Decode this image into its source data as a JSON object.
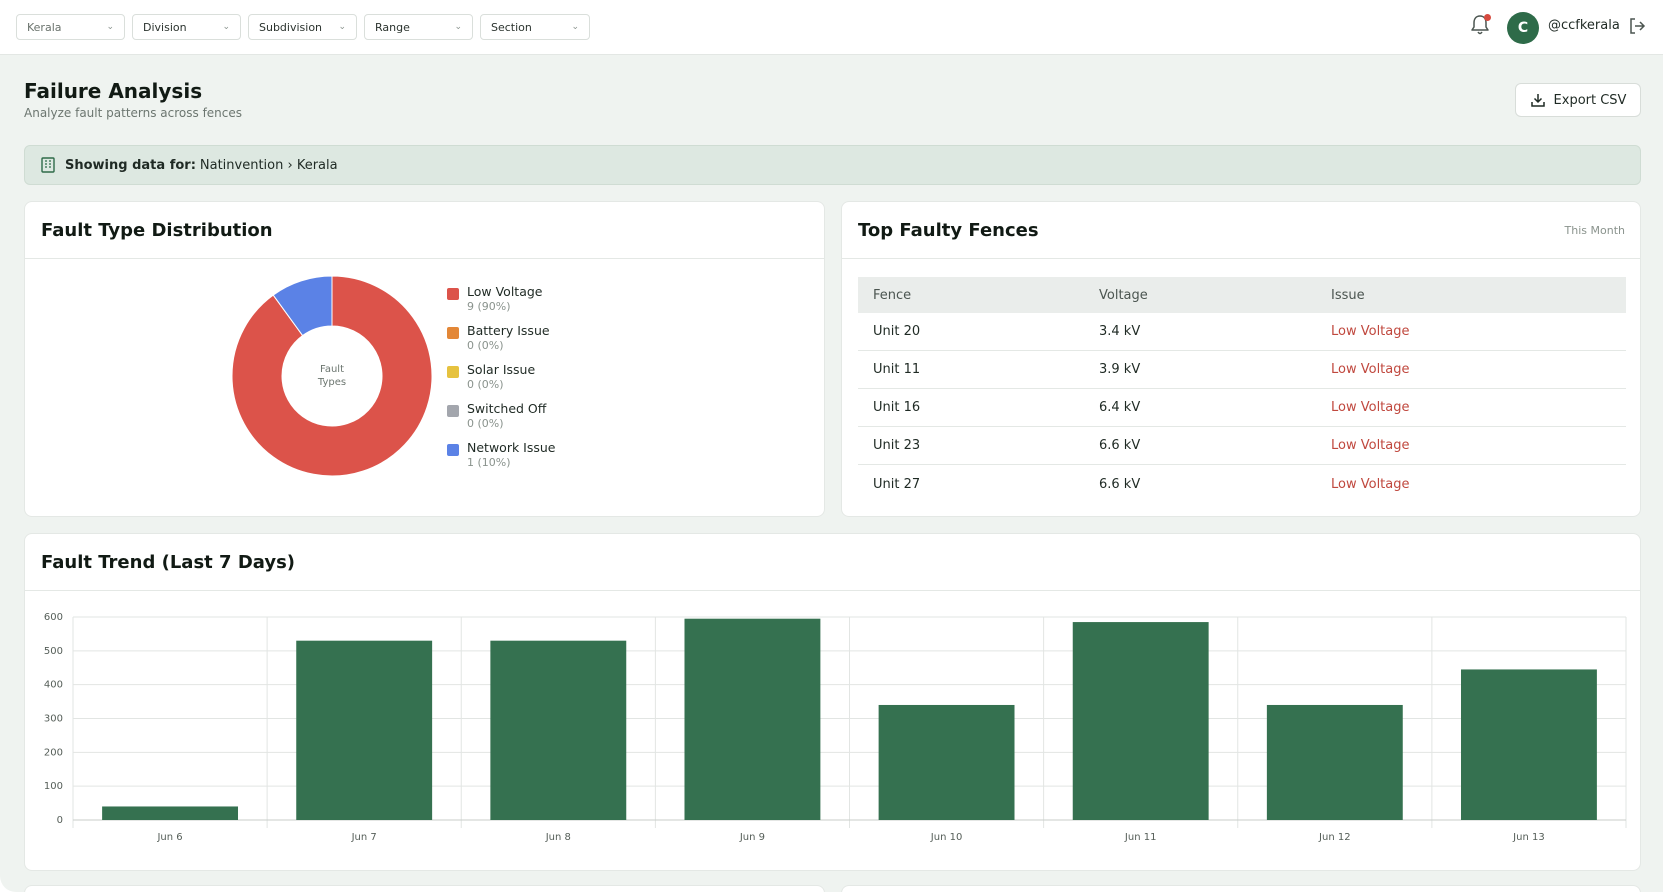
{
  "filters": [
    {
      "label": "Kerala",
      "muted": true
    },
    {
      "label": "Division"
    },
    {
      "label": "Subdivision"
    },
    {
      "label": "Range"
    },
    {
      "label": "Section"
    }
  ],
  "user": {
    "initial": "C",
    "handle": "@ccfkerala"
  },
  "page": {
    "title": "Failure Analysis",
    "subtitle": "Analyze fault patterns across fences",
    "export_label": "Export CSV"
  },
  "scope": {
    "label": "Showing data for:",
    "value": "Natinvention › Kerala"
  },
  "fault_dist": {
    "title": "Fault Type Distribution",
    "center_label_1": "Fault",
    "center_label_2": "Types",
    "items": [
      {
        "name": "Low Voltage",
        "count": "9 (90%)",
        "value": 9,
        "color": "#dc534a"
      },
      {
        "name": "Battery Issue",
        "count": "0 (0%)",
        "value": 0,
        "color": "#e38737"
      },
      {
        "name": "Solar Issue",
        "count": "0 (0%)",
        "value": 0,
        "color": "#e6c23f"
      },
      {
        "name": "Switched Off",
        "count": "0 (0%)",
        "value": 0,
        "color": "#a3a6ad"
      },
      {
        "name": "Network Issue",
        "count": "1 (10%)",
        "value": 1,
        "color": "#5b82e6"
      }
    ]
  },
  "top_faulty": {
    "title": "Top Faulty Fences",
    "period": "This Month",
    "headers": [
      "Fence",
      "Voltage",
      "Issue"
    ],
    "rows": [
      {
        "fence": "Unit 20",
        "voltage": "3.4 kV",
        "issue": "Low Voltage"
      },
      {
        "fence": "Unit 11",
        "voltage": "3.9 kV",
        "issue": "Low Voltage"
      },
      {
        "fence": "Unit 16",
        "voltage": "6.4 kV",
        "issue": "Low Voltage"
      },
      {
        "fence": "Unit 23",
        "voltage": "6.6 kV",
        "issue": "Low Voltage"
      },
      {
        "fence": "Unit 27",
        "voltage": "6.6 kV",
        "issue": "Low Voltage"
      }
    ]
  },
  "trend": {
    "title": "Fault Trend (Last 7 Days)"
  },
  "chart_data": {
    "type": "bar",
    "title": "Fault Trend (Last 7 Days)",
    "categories": [
      "Jun 6",
      "Jun 7",
      "Jun 8",
      "Jun 9",
      "Jun 10",
      "Jun 11",
      "Jun 12",
      "Jun 13"
    ],
    "values": [
      40,
      530,
      530,
      595,
      340,
      585,
      340,
      445
    ],
    "yticks": [
      0,
      100,
      200,
      300,
      400,
      500,
      600
    ],
    "ylim": [
      0,
      600
    ],
    "bar_color": "#357150",
    "grid": true
  }
}
